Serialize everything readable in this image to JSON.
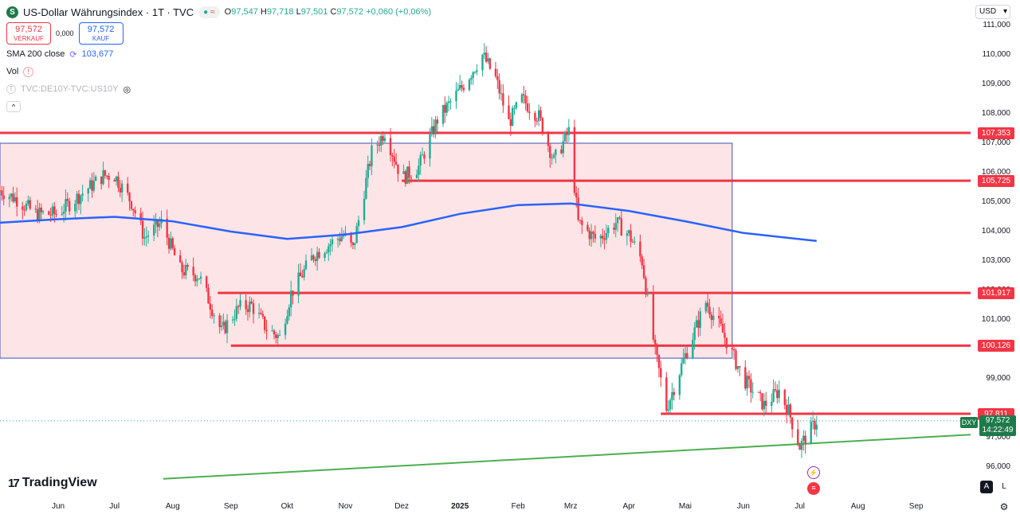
{
  "header": {
    "symbol_badge": "S",
    "title": "US-Dollar Währungsindex · 1T · TVC",
    "ohlc": {
      "o_label": "O",
      "o": "97,547",
      "h_label": "H",
      "h": "97,718",
      "l_label": "L",
      "l": "97,501",
      "c_label": "C",
      "c": "97,572",
      "change": "+0,060 (+0,06%)"
    }
  },
  "trade": {
    "sell_price": "97,572",
    "sell_label": "VERKAUF",
    "spread": "0,000",
    "buy_price": "97,572",
    "buy_label": "KAUF"
  },
  "indicators": {
    "sma_label": "SMA 200 close",
    "sma_value": "103,677",
    "vol_label": "Vol",
    "compare_label": "TVC:DE10Y-TVC:US10Y"
  },
  "currency": "USD",
  "brand": "TradingView",
  "current": {
    "symbol": "DXY",
    "price": "97,572",
    "countdown": "14:22:49"
  },
  "corner": {
    "auto": "A",
    "log": "L"
  },
  "colors": {
    "up": "#22ab94",
    "down": "#f23645",
    "sma": "#2962ff",
    "zone": "#f23645",
    "trend": "#4caf50"
  },
  "chart_data": {
    "type": "candlestick",
    "ylim": [
      95.6,
      111.4
    ],
    "y_ticks": [
      "96,000",
      "97,000",
      "99,000",
      "101,000",
      "102,000",
      "103,000",
      "104,000",
      "105,000",
      "106,000",
      "107,000",
      "108,000",
      "109,000",
      "110,000",
      "111,000"
    ],
    "y_tick_values": [
      96,
      97,
      99,
      101,
      102,
      103,
      104,
      105,
      106,
      107,
      108,
      109,
      110,
      111
    ],
    "x_ticks": [
      "Jun",
      "Jul",
      "Aug",
      "Sep",
      "Okt",
      "Nov",
      "Dez",
      "2025",
      "Feb",
      "Mrz",
      "Apr",
      "Mai",
      "Jun",
      "Jul",
      "Aug",
      "Sep"
    ],
    "x_tick_dates": [
      "2024-06-01",
      "2024-07-01",
      "2024-08-01",
      "2024-09-01",
      "2024-10-01",
      "2024-11-01",
      "2024-12-01",
      "2025-01-01",
      "2025-02-01",
      "2025-03-01",
      "2025-04-01",
      "2025-05-01",
      "2025-06-01",
      "2025-07-01",
      "2025-08-01",
      "2025-09-01"
    ],
    "bold_tick": "2025",
    "price_lines": [
      {
        "label": "107,353",
        "value": 107.353,
        "from": "2024-05-01",
        "to": "2025-09-30"
      },
      {
        "label": "105,725",
        "value": 105.725,
        "from": "2024-12-01",
        "to": "2025-09-30"
      },
      {
        "label": "101,917",
        "value": 101.917,
        "from": "2024-08-25",
        "to": "2025-09-30"
      },
      {
        "label": "100,126",
        "value": 100.126,
        "from": "2024-09-01",
        "to": "2025-09-30"
      },
      {
        "label": "97,811",
        "value": 97.811,
        "from": "2025-04-18",
        "to": "2025-09-30"
      }
    ],
    "zone": {
      "from": "2024-05-01",
      "to": "2025-05-26",
      "top": 107.0,
      "bottom": 99.7
    },
    "trendline": [
      {
        "date": "2024-07-27",
        "value": 95.6
      },
      {
        "date": "2025-09-30",
        "value": 97.1
      }
    ],
    "sma200": [
      [
        "2024-05-01",
        104.3
      ],
      [
        "2024-06-01",
        104.42
      ],
      [
        "2024-07-01",
        104.5
      ],
      [
        "2024-08-01",
        104.35
      ],
      [
        "2024-09-01",
        104.0
      ],
      [
        "2024-10-01",
        103.75
      ],
      [
        "2024-11-01",
        103.9
      ],
      [
        "2024-12-01",
        104.15
      ],
      [
        "2025-01-01",
        104.6
      ],
      [
        "2025-02-01",
        104.9
      ],
      [
        "2025-03-01",
        104.95
      ],
      [
        "2025-04-01",
        104.7
      ],
      [
        "2025-05-01",
        104.35
      ],
      [
        "2025-06-01",
        103.95
      ],
      [
        "2025-07-10",
        103.68
      ]
    ],
    "price_path": [
      [
        "2024-05-01",
        105.4
      ],
      [
        "2024-05-10",
        105.1
      ],
      [
        "2024-05-20",
        104.6
      ],
      [
        "2024-05-31",
        104.6
      ],
      [
        "2024-06-10",
        105.1
      ],
      [
        "2024-06-25",
        105.9
      ],
      [
        "2024-07-01",
        105.9
      ],
      [
        "2024-07-10",
        105.0
      ],
      [
        "2024-07-17",
        103.8
      ],
      [
        "2024-07-26",
        104.3
      ],
      [
        "2024-08-05",
        102.7
      ],
      [
        "2024-08-15",
        102.5
      ],
      [
        "2024-08-27",
        100.6
      ],
      [
        "2024-09-05",
        101.4
      ],
      [
        "2024-09-12",
        101.5
      ],
      [
        "2024-09-20",
        100.7
      ],
      [
        "2024-09-27",
        100.4
      ],
      [
        "2024-10-03",
        101.9
      ],
      [
        "2024-10-15",
        103.2
      ],
      [
        "2024-10-31",
        103.9
      ],
      [
        "2024-11-05",
        103.4
      ],
      [
        "2024-11-15",
        106.7
      ],
      [
        "2024-11-22",
        107.4
      ],
      [
        "2024-12-01",
        105.8
      ],
      [
        "2024-12-10",
        106.2
      ],
      [
        "2024-12-20",
        107.8
      ],
      [
        "2025-01-02",
        108.9
      ],
      [
        "2025-01-13",
        110.0
      ],
      [
        "2025-01-20",
        109.2
      ],
      [
        "2025-01-27",
        107.7
      ],
      [
        "2025-02-03",
        108.5
      ],
      [
        "2025-02-12",
        107.9
      ],
      [
        "2025-02-20",
        106.4
      ],
      [
        "2025-02-28",
        107.4
      ],
      [
        "2025-03-05",
        104.3
      ],
      [
        "2025-03-15",
        103.7
      ],
      [
        "2025-03-25",
        104.3
      ],
      [
        "2025-04-01",
        103.9
      ],
      [
        "2025-04-08",
        103.0
      ],
      [
        "2025-04-15",
        99.9
      ],
      [
        "2025-04-21",
        98.0
      ],
      [
        "2025-05-01",
        99.8
      ],
      [
        "2025-05-12",
        101.6
      ],
      [
        "2025-05-20",
        100.7
      ],
      [
        "2025-06-01",
        99.0
      ],
      [
        "2025-06-12",
        98.1
      ],
      [
        "2025-06-20",
        98.6
      ],
      [
        "2025-06-25",
        97.9
      ],
      [
        "2025-07-01",
        96.7
      ],
      [
        "2025-07-10",
        97.57
      ]
    ],
    "last_price": 97.572
  }
}
